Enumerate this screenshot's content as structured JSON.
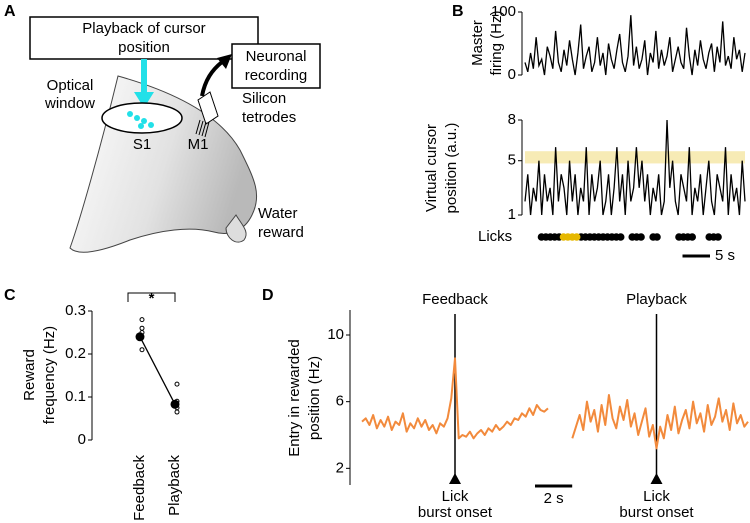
{
  "panel_labels": [
    "A",
    "B",
    "C",
    "D"
  ],
  "diagram": {
    "playback_box": [
      "Playback of cursor",
      "position"
    ],
    "recording_box": [
      "Neuronal",
      "recording"
    ],
    "optical_window": [
      "Optical",
      "window"
    ],
    "tetrodes": [
      "Silicon",
      "tetrodes"
    ],
    "s1": "S1",
    "m1": "M1",
    "reward": [
      "Water",
      "reward"
    ]
  },
  "chart_data": [
    {
      "type": "line",
      "ylabel": [
        "Master",
        "firing (Hz)"
      ],
      "xlim": [
        0,
        40
      ],
      "ylim": [
        0,
        100
      ],
      "yticks": [
        0,
        100
      ],
      "color": "#000000",
      "values": [
        20,
        5,
        35,
        10,
        60,
        15,
        25,
        0,
        45,
        30,
        10,
        70,
        20,
        5,
        40,
        15,
        55,
        25,
        0,
        35,
        80,
        10,
        30,
        45,
        5,
        20,
        60,
        15,
        35,
        0,
        50,
        25,
        10,
        40,
        65,
        20,
        5,
        30,
        95,
        15,
        45,
        10,
        25,
        55,
        0,
        35,
        20,
        70,
        10,
        40,
        15,
        30,
        60,
        5,
        25,
        45,
        20,
        10,
        75,
        30,
        0,
        40,
        15,
        55,
        25,
        10,
        35,
        50,
        5,
        45,
        20,
        85,
        15,
        30,
        10,
        60,
        25,
        40,
        5,
        35
      ]
    },
    {
      "type": "line",
      "ylabel": [
        "Virtual cursor",
        "position (a.u.)"
      ],
      "xlim": [
        0,
        40
      ],
      "ylim": [
        1,
        8
      ],
      "yticks": [
        1,
        5,
        8
      ],
      "band": [
        4.8,
        5.7
      ],
      "band_color": "#f7ebb5",
      "color": "#000000",
      "values": [
        2,
        4,
        1,
        3,
        2,
        5,
        1,
        4,
        2,
        3,
        1,
        6,
        2,
        4,
        3,
        1,
        5,
        2,
        4,
        1,
        3,
        2,
        6,
        1,
        4,
        2,
        3,
        5,
        1,
        2,
        4,
        1,
        3,
        6,
        2,
        4,
        1,
        5,
        2,
        3,
        6,
        3,
        5,
        2,
        4,
        1,
        3,
        2,
        4,
        1,
        2,
        8,
        3,
        5,
        2,
        1,
        4,
        3,
        2,
        6,
        1,
        3,
        2,
        4,
        1,
        3,
        5,
        2,
        1,
        4,
        3,
        2,
        6,
        1,
        4,
        2,
        3,
        1,
        5,
        2
      ],
      "licks": {
        "label": "Licks",
        "color": "#000000",
        "x": [
          3,
          3.8,
          4.6,
          5.4,
          6.2,
          10.2,
          11,
          11.8,
          12.6,
          13.4,
          14.2,
          15,
          15.8,
          16.6,
          17.4,
          19.5,
          20.3,
          21.1,
          23.3,
          24,
          28,
          28.8,
          29.6,
          30.4,
          33.5,
          34.3,
          35.1
        ]
      },
      "reward_licks": {
        "color": "#e6b800",
        "x": [
          7,
          7.8,
          8.6,
          9.4
        ]
      },
      "scalebar": {
        "value": 5,
        "label": "5 s"
      }
    },
    {
      "type": "dot",
      "ylabel": [
        "Reward",
        "frequency (Hz)"
      ],
      "categories": [
        "Feedback",
        "Playback"
      ],
      "values": [
        0.24,
        0.083
      ],
      "points": [
        [
          0.28,
          0.26,
          0.25,
          0.21
        ],
        [
          0.13,
          0.09,
          0.075,
          0.065
        ]
      ],
      "ylim": [
        0,
        0.3
      ],
      "yticks": [
        0,
        0.1,
        0.2,
        0.3
      ],
      "significance": "*",
      "color": "#000000"
    },
    {
      "type": "line",
      "ylabel": [
        "Entry in rewarded",
        "position (Hz)"
      ],
      "xlim": [
        -5,
        5
      ],
      "ylim": [
        1,
        11.5
      ],
      "yticks": [
        2,
        6,
        10
      ],
      "x": [
        -5,
        -4.8,
        -4.6,
        -4.4,
        -4.2,
        -4,
        -3.8,
        -3.6,
        -3.4,
        -3.2,
        -3,
        -2.8,
        -2.6,
        -2.4,
        -2.2,
        -2,
        -1.8,
        -1.6,
        -1.4,
        -1.2,
        -1,
        -0.8,
        -0.6,
        -0.4,
        -0.2,
        0,
        0.2,
        0.4,
        0.6,
        0.8,
        1,
        1.2,
        1.4,
        1.6,
        1.8,
        2,
        2.2,
        2.4,
        2.6,
        2.8,
        3,
        3.2,
        3.4,
        3.6,
        3.8,
        4,
        4.2,
        4.4,
        4.6,
        4.8,
        5
      ],
      "series": [
        {
          "name": "Feedback",
          "color": "#f28a3c",
          "values": [
            4.8,
            5,
            4.6,
            5.2,
            4.4,
            4.9,
            4.5,
            5.1,
            4.3,
            4.8,
            4.6,
            5.3,
            4.2,
            4.7,
            4.4,
            5,
            4.5,
            4.9,
            4.3,
            4.6,
            4.1,
            4.7,
            4.5,
            5,
            6.2,
            8.6,
            3.8,
            4,
            3.9,
            4.2,
            3.8,
            4.1,
            4.3,
            4,
            4.4,
            4.2,
            4.6,
            4.3,
            4.5,
            4.8,
            4.6,
            5,
            4.9,
            5.3,
            5.1,
            5.6,
            5.2,
            5.8,
            5.5,
            5.4,
            5.6
          ]
        },
        {
          "name": "Playback",
          "color": "#f28a3c",
          "values": [
            null,
            null,
            3.8,
            4.5,
            5.2,
            4.3,
            6,
            4.8,
            5.5,
            4.2,
            5.8,
            4.6,
            6.4,
            5,
            4.4,
            5.7,
            4.9,
            6.1,
            4.5,
            5.3,
            4,
            4.8,
            5.6,
            3.9,
            4.6,
            3.2,
            4.5,
            3.8,
            5.2,
            4.3,
            5.7,
            4.1,
            4.9,
            5.5,
            4.4,
            6,
            4.7,
            5.3,
            4.2,
            5.8,
            4.6,
            5.1,
            6.2,
            4.8,
            5.5,
            4.3,
            5.9,
            4.7,
            5.2,
            4.5,
            4.8
          ]
        }
      ],
      "event_x": 0,
      "annotation": [
        "Lick",
        "burst onset"
      ],
      "scalebar": {
        "value": 2,
        "label": "2 s"
      }
    }
  ]
}
